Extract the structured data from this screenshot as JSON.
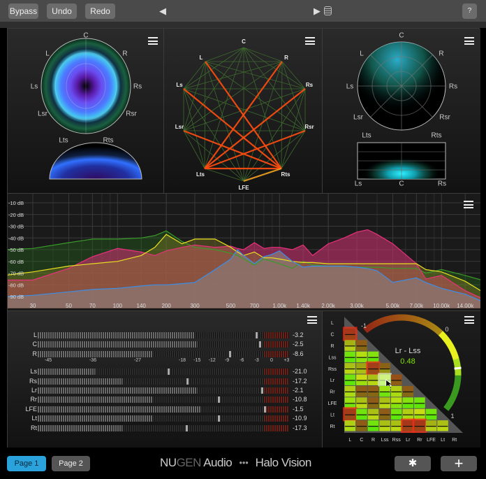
{
  "toolbar": {
    "bypass": "Bypass",
    "undo": "Undo",
    "redo": "Redo",
    "prev": "◀",
    "next": "▶",
    "help": "?"
  },
  "surround_1": {
    "labels": {
      "C": "C",
      "L": "L",
      "R": "R",
      "Ls": "Ls",
      "Rs": "Rs",
      "Lsr": "Lsr",
      "Rsr": "Rsr",
      "Lts": "Lts",
      "Rts": "Rts"
    }
  },
  "correlation_web": {
    "labels": [
      "C",
      "L",
      "R",
      "Ls",
      "Rs",
      "Lsr",
      "Rsr",
      "Lts",
      "Rts",
      "LFE"
    ],
    "highlighted_pairs": [
      [
        "L",
        "Rts"
      ],
      [
        "R",
        "Lts"
      ],
      [
        "Ls",
        "Rts"
      ],
      [
        "Rs",
        "Lts"
      ],
      [
        "Lsr",
        "Rts"
      ],
      [
        "Rsr",
        "Lts"
      ],
      [
        "Lts",
        "Rts"
      ],
      [
        "LFE",
        "Rts"
      ]
    ]
  },
  "surround_2": {
    "labels": {
      "C": "C",
      "L": "L",
      "R": "R",
      "Ls": "Ls",
      "Rs": "Rs",
      "Lsr": "Lsr",
      "Rsr": "Rsr",
      "Lts": "Lts",
      "Rts": "Rts",
      "bLs": "Ls",
      "bC": "C",
      "bRs": "Rs"
    }
  },
  "chart_data": {
    "type": "area",
    "x_scale": "log",
    "xlim": [
      20,
      20000
    ],
    "ylim": [
      -100,
      -5
    ],
    "x_ticks": [
      {
        "v": 30,
        "l": "30"
      },
      {
        "v": 50,
        "l": "50"
      },
      {
        "v": 70,
        "l": "70"
      },
      {
        "v": 100,
        "l": "100"
      },
      {
        "v": 140,
        "l": "140"
      },
      {
        "v": 200,
        "l": "200"
      },
      {
        "v": 300,
        "l": "300"
      },
      {
        "v": 500,
        "l": "500"
      },
      {
        "v": 700,
        "l": "700"
      },
      {
        "v": 1000,
        "l": "1.00k"
      },
      {
        "v": 1400,
        "l": "1.40k"
      },
      {
        "v": 2000,
        "l": "2.00k"
      },
      {
        "v": 3000,
        "l": "3.00k"
      },
      {
        "v": 5000,
        "l": "5.00k"
      },
      {
        "v": 7000,
        "l": "7.00k"
      },
      {
        "v": 10000,
        "l": "10.00k"
      },
      {
        "v": 14000,
        "l": "14.00k"
      }
    ],
    "y_ticks": [
      {
        "v": -10,
        "l": "-10 dB"
      },
      {
        "v": -20,
        "l": "-20 dB"
      },
      {
        "v": -30,
        "l": "-30 dB"
      },
      {
        "v": -40,
        "l": "-40 dB"
      },
      {
        "v": -50,
        "l": "-50 dB"
      },
      {
        "v": -60,
        "l": "-60 dB"
      },
      {
        "v": -70,
        "l": "-70 dB"
      },
      {
        "v": -80,
        "l": "-80 dB"
      },
      {
        "v": -90,
        "l": "-90 dB"
      }
    ],
    "grid": true,
    "x": [
      20,
      30,
      50,
      70,
      100,
      140,
      170,
      200,
      250,
      300,
      400,
      500,
      550,
      600,
      700,
      800,
      900,
      1000,
      1200,
      1400,
      1600,
      2000,
      2500,
      3000,
      3500,
      4000,
      5000,
      7000,
      8000,
      10000,
      14000,
      20000
    ],
    "series": [
      {
        "color": "#3a9a2a",
        "fill": "rgba(40,110,30,0.35)",
        "values": [
          -50,
          -49,
          -44,
          -41,
          -41,
          -40,
          -38,
          -34,
          -43,
          -48,
          -50,
          -53,
          -55,
          -58,
          -63,
          -58,
          -60,
          -62,
          -66,
          -60,
          -63,
          -64,
          -64,
          -65,
          -65,
          -65,
          -66,
          -66,
          -70,
          -67,
          -72,
          -78
        ]
      },
      {
        "color": "#e8307a",
        "fill": "rgba(200,50,110,0.6)",
        "values": [
          -76,
          -76,
          -66,
          -56,
          -49,
          -52,
          -55,
          -51,
          -48,
          -46,
          -48,
          -47,
          -49,
          -50,
          -44,
          -49,
          -48,
          -48,
          -50,
          -46,
          -55,
          -45,
          -40,
          -35,
          -33,
          -37,
          -45,
          -62,
          -75,
          -72,
          -85,
          -95
        ]
      },
      {
        "color": "#e8e020",
        "fill": "rgba(150,140,40,0.35)",
        "values": [
          -72,
          -69,
          -64,
          -62,
          -60,
          -55,
          -48,
          -37,
          -45,
          -41,
          -41,
          -48,
          -52,
          -55,
          -52,
          -57,
          -57,
          -58,
          -60,
          -61,
          -61,
          -62,
          -62,
          -62,
          -62,
          -62,
          -62,
          -62,
          -67,
          -69,
          -77,
          -90
        ]
      },
      {
        "color": "#3a8ee8",
        "fill": "rgba(140,120,118,0.75)",
        "values": [
          -90,
          -89,
          -86,
          -84,
          -83,
          -81,
          -80,
          -80,
          -79,
          -78,
          -67,
          -58,
          -50,
          -55,
          -62,
          -56,
          -54,
          -51,
          -60,
          -65,
          -64,
          -64,
          -64,
          -65,
          -66,
          -68,
          -78,
          -74,
          -78,
          -83,
          -88,
          -97
        ]
      }
    ]
  },
  "meters": {
    "scale": [
      {
        "v": -45,
        "l": "-45"
      },
      {
        "v": -36,
        "l": "-36"
      },
      {
        "v": -27,
        "l": "-27"
      },
      {
        "v": -18,
        "l": "-18"
      },
      {
        "v": -15,
        "l": "-15"
      },
      {
        "v": -12,
        "l": "-12"
      },
      {
        "v": -9,
        "l": "-9"
      },
      {
        "v": -6,
        "l": "-6"
      },
      {
        "v": -3,
        "l": "-3"
      },
      {
        "v": 0,
        "l": "0"
      },
      {
        "v": 3,
        "l": "+3"
      }
    ],
    "channels": [
      {
        "name": "L",
        "level": -15.5,
        "peak": -3.2,
        "value": "-3.2"
      },
      {
        "name": "C",
        "level": -15,
        "peak": -2.5,
        "value": "-2.5"
      },
      {
        "name": "R",
        "level": -24,
        "peak": -8.6,
        "value": "-8.6"
      },
      {
        "name": "Ls",
        "level": -35.5,
        "peak": -21.0,
        "value": "-21.0"
      },
      {
        "name": "Rs",
        "level": -30,
        "peak": -17.2,
        "value": "-17.2"
      },
      {
        "name": "Lr",
        "level": -15,
        "peak": -2.1,
        "value": "-2.1"
      },
      {
        "name": "Rr",
        "level": -24,
        "peak": -10.8,
        "value": "-10.8"
      },
      {
        "name": "LFE",
        "level": -14.3,
        "peak": -1.5,
        "value": "-1.5"
      },
      {
        "name": "Lt",
        "level": -24,
        "peak": -10.9,
        "value": "-10.9"
      },
      {
        "name": "Rt",
        "level": -30,
        "peak": -17.3,
        "value": "-17.3"
      }
    ]
  },
  "matrix": {
    "channels": [
      "L",
      "C",
      "R",
      "Lss",
      "Rss",
      "Lr",
      "Rr",
      "LFE",
      "Lt",
      "Rt"
    ],
    "values": [
      [],
      [
        -0.9
      ],
      [
        0.2,
        -0.3
      ],
      [
        0.9,
        0.6,
        0.8
      ],
      [
        0.3,
        0.1,
        -0.8,
        -0.2
      ],
      [
        0.9,
        0.5,
        0.3,
        0.48,
        -0.5
      ],
      [
        0.4,
        -0.3,
        -0.3,
        0.7,
        0.4,
        -0.3
      ],
      [
        0.7,
        0.3,
        -0.3,
        0.3,
        0.6,
        0.8,
        0.9
      ],
      [
        -0.8,
        0.9,
        0.3,
        -0.3,
        0.9,
        0.4,
        0.5,
        0.9
      ],
      [
        0.4,
        -0.3,
        0.9,
        0.3,
        0.3,
        -0.9,
        -0.9,
        0.2,
        0.3
      ]
    ],
    "selected": {
      "row": "Lr",
      "col": "Lss",
      "label": "Lr - Lss",
      "value": "0.48",
      "value_num": 0.48,
      "color": "#7ee000"
    },
    "gauge": {
      "min_label": "-1",
      "mid_label": "0",
      "max_label": "1"
    }
  },
  "footer": {
    "page1": "Page 1",
    "page2": "Page 2",
    "brand_nu": "NU",
    "brand_gen": "GEN",
    "brand_audio": " Audio",
    "dots": "●●●",
    "product": "Halo Vision",
    "accent": "#2aa3dc"
  }
}
